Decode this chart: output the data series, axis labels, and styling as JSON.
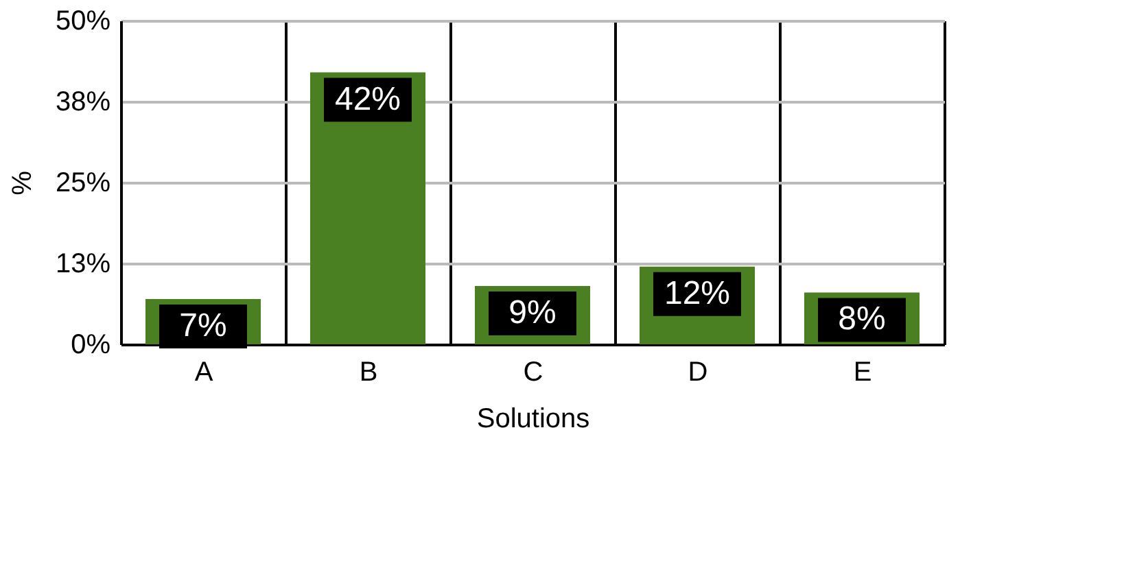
{
  "chart_data": {
    "type": "bar",
    "xlabel": "Solutions",
    "ylabel": "%",
    "categories": [
      "A",
      "B",
      "C",
      "D",
      "E"
    ],
    "values": [
      7,
      42,
      9,
      12,
      8
    ],
    "value_labels": [
      "7%",
      "42%",
      "9%",
      "12%",
      "8%"
    ],
    "color": "#4a7f22",
    "ylim": [
      0,
      50
    ],
    "yticks": [
      {
        "value": 0,
        "label": "0%"
      },
      {
        "value": 12.5,
        "label": "13%"
      },
      {
        "value": 25,
        "label": "25%"
      },
      {
        "value": 37.5,
        "label": "38%"
      },
      {
        "value": 50,
        "label": "50%"
      }
    ],
    "grid": true
  }
}
